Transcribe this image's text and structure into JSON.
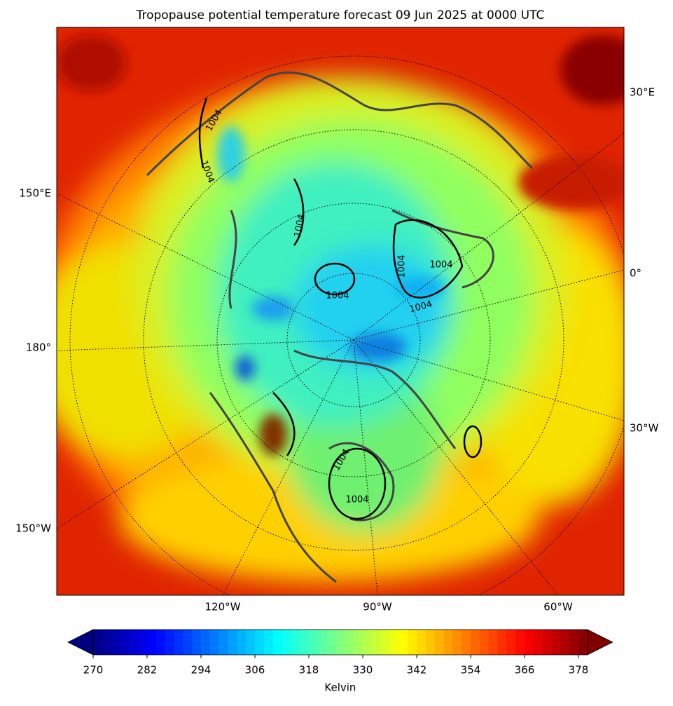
{
  "map": {
    "title": "Tropopause potential temperature forecast 09 Jun 2025 at 0000 UTC",
    "left_labels": [
      "150°E",
      "180°",
      "150°W"
    ],
    "right_labels": [
      "30°E",
      "0°",
      "30°W"
    ],
    "bottom_labels": [
      "120°W",
      "90°W",
      "60°W"
    ],
    "isobar_labels": [
      1004,
      1004,
      1004,
      1004,
      1004,
      1004,
      1004,
      1004,
      1004
    ],
    "colorbar": {
      "label": "Kelvin",
      "range": [
        270,
        380
      ],
      "ticks": [
        270,
        282,
        294,
        306,
        318,
        330,
        342,
        354,
        366,
        378
      ],
      "colormap": "jet"
    }
  }
}
